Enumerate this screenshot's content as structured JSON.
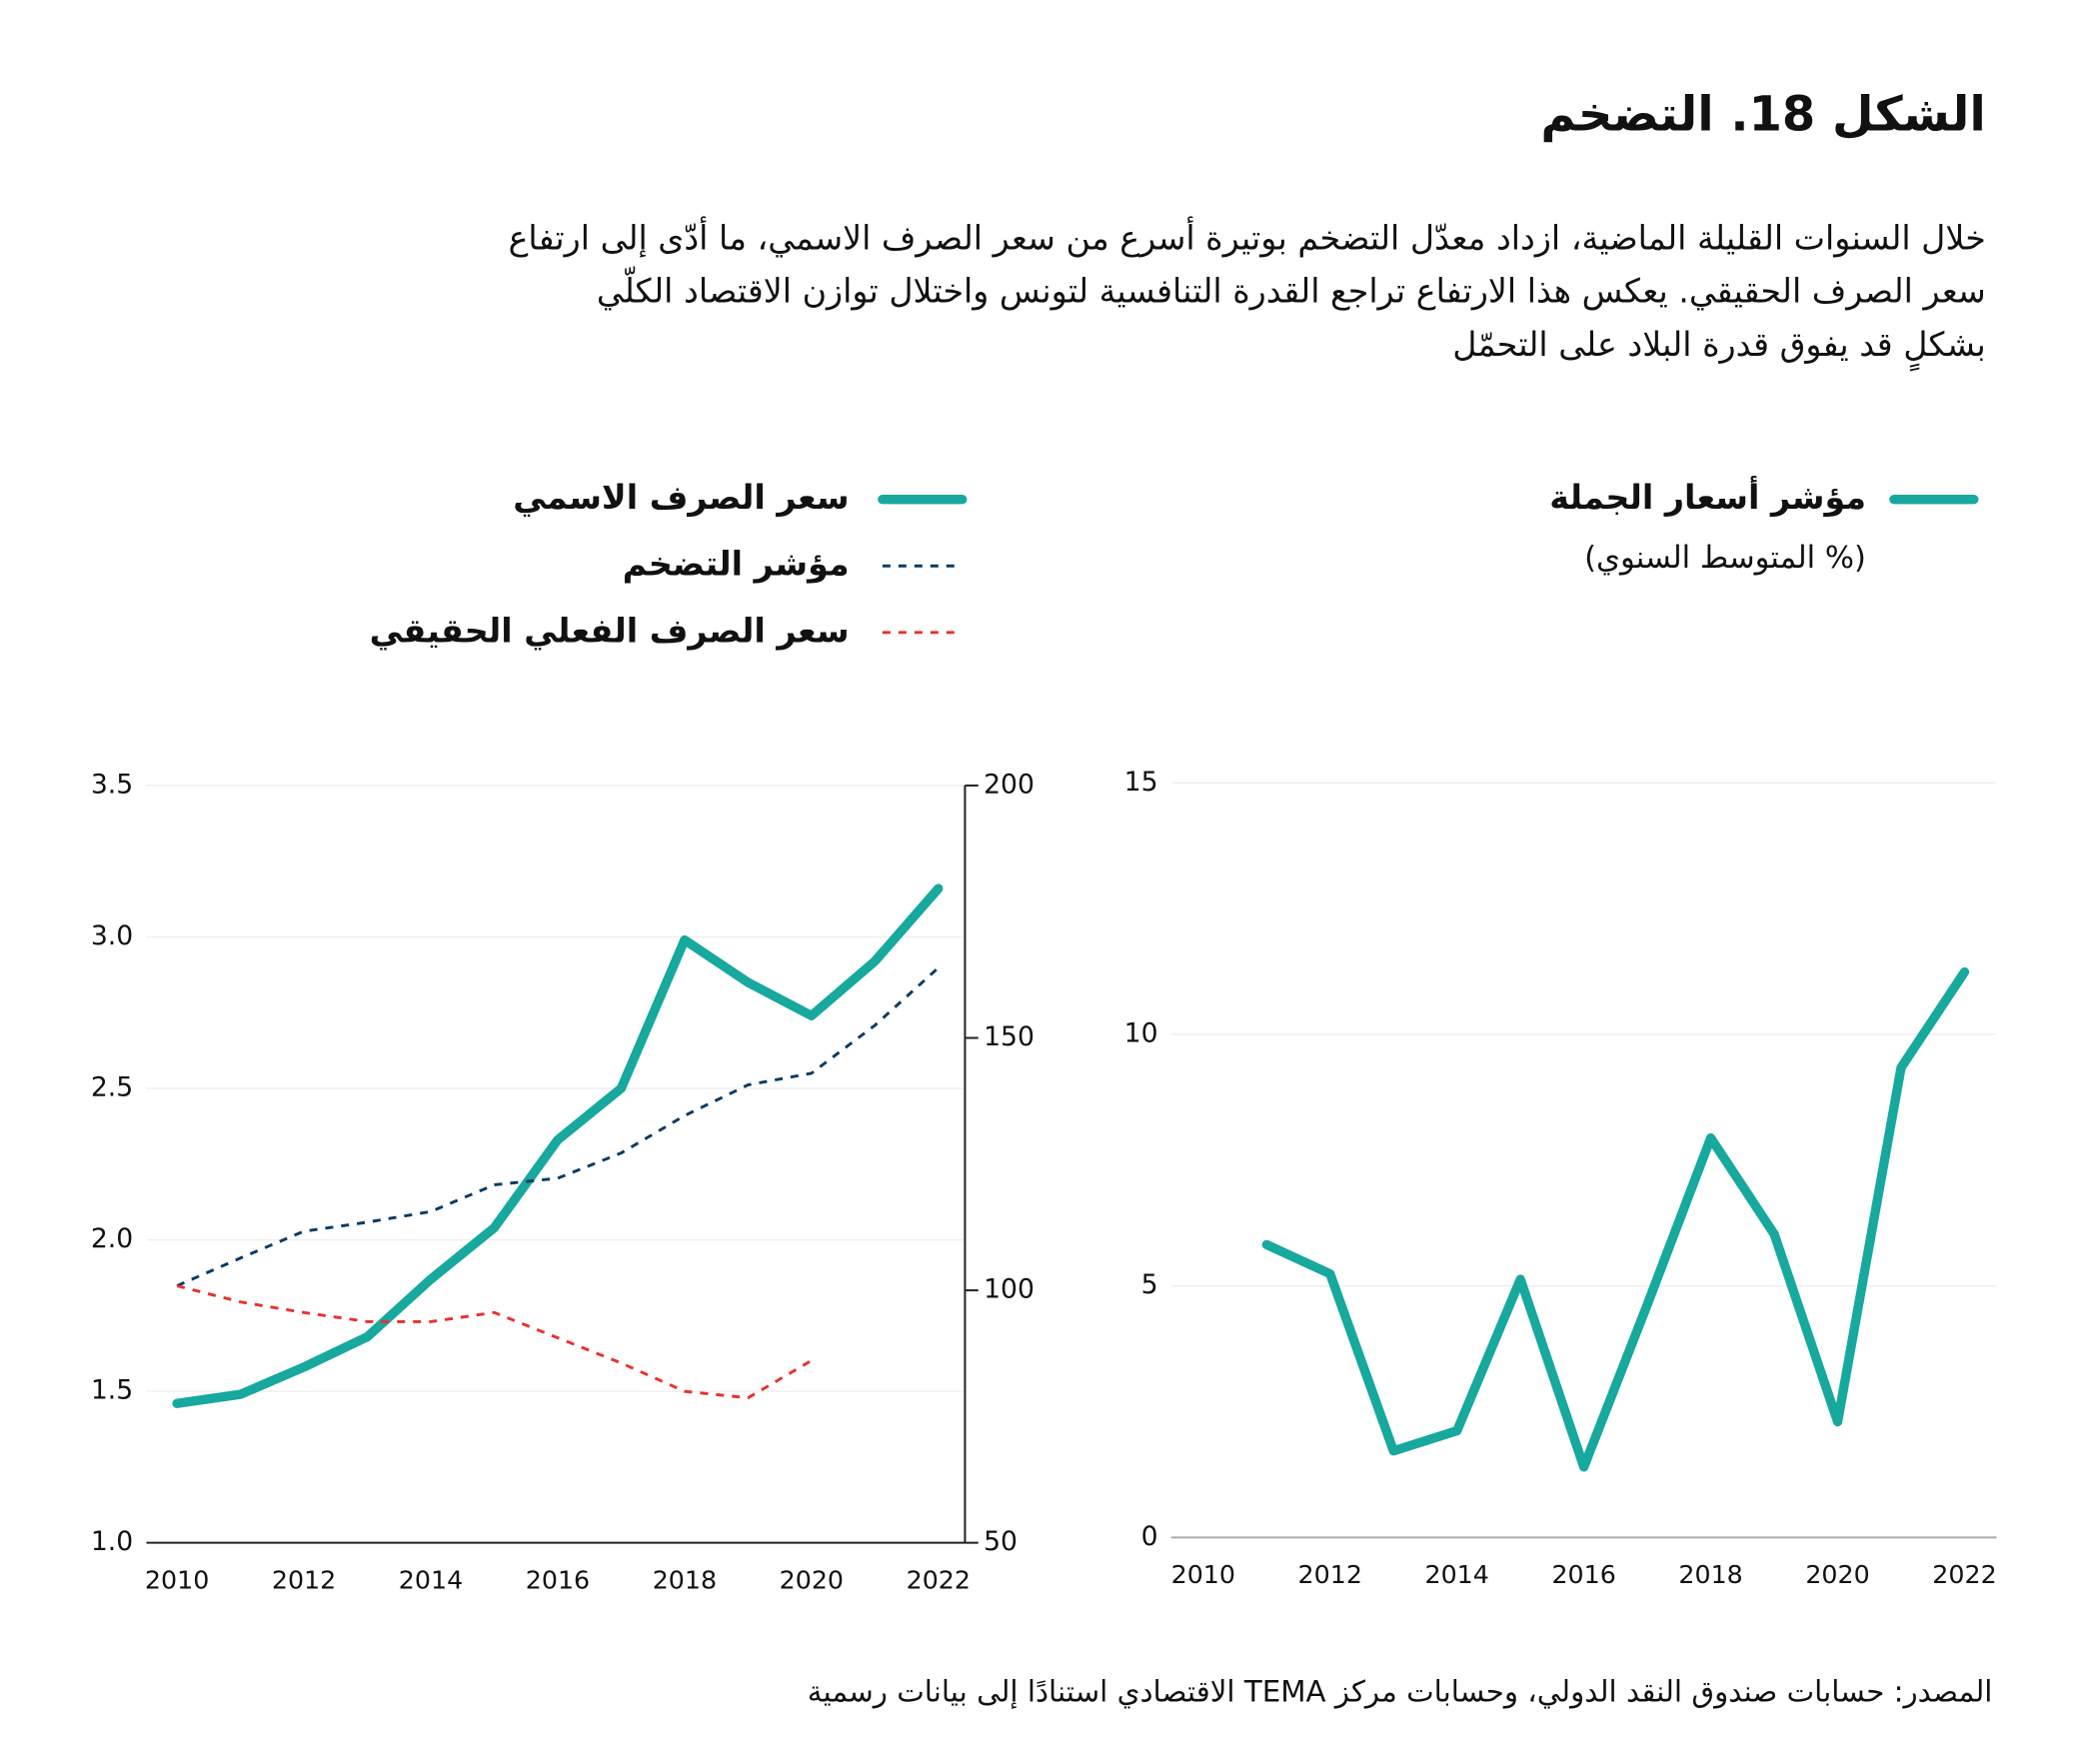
{
  "header": {
    "title": "الشكل 18. التضخم",
    "description": [
      "خلال السنوات القليلة الماضية، ازداد معدّل التضخم بوتيرة أسرع من سعر الصرف الاسمي، ما أدّى إلى ارتفاع",
      "سعر الصرف الحقيقي. يعكس هذا الارتفاع تراجع القدرة التنافسية لتونس واختلال توازن الاقتصاد الكلّي",
      "بشكلٍ قد يفوق قدرة البلاد على التحمّل"
    ]
  },
  "chart_data": [
    {
      "type": "line",
      "x": [
        2010,
        2011,
        2012,
        2013,
        2014,
        2015,
        2016,
        2017,
        2018,
        2019,
        2020,
        2021,
        2022
      ],
      "xlim": [
        2009.5,
        2022.5
      ],
      "xticks": [
        2010,
        2012,
        2014,
        2016,
        2018,
        2020,
        2022
      ],
      "ylim": [
        1,
        3.5
      ],
      "yticks": [
        {
          "value": 1,
          "label": "1.0"
        },
        1.5,
        {
          "value": 2,
          "label": "2.0"
        },
        2.5,
        {
          "value": 3,
          "label": "3.0"
        },
        3.5
      ],
      "y2lim": [
        50,
        200
      ],
      "y2ticks": [
        50,
        100,
        150,
        200
      ],
      "grid": true,
      "series": [
        {
          "name": "سعر الصرف الاسمي",
          "color": "#17a89e",
          "dashed": false,
          "values": [
            1.46,
            1.49,
            1.58,
            1.68,
            1.87,
            2.04,
            2.33,
            2.5,
            2.99,
            2.85,
            2.74,
            2.92,
            3.16
          ]
        },
        {
          "name": "مؤشر التضخم",
          "color": "#0b3b63",
          "dashed": true,
          "axis": "y2",
          "values": [
            100.9,
            106.4,
            111.7,
            113.5,
            115.6,
            120.9,
            122.2,
            127.2,
            134.6,
            140.7,
            143,
            152.5,
            163.9
          ]
        },
        {
          "name": "سعر الصرف الفعلي الحقيقي",
          "color": "#e8322b",
          "dashed": true,
          "axis": "y2",
          "values": [
            100.9,
            97.7,
            95.6,
            93.8,
            93.8,
            95.6,
            90.6,
            85.6,
            80,
            78.7,
            86.1,
            null,
            null
          ]
        }
      ]
    },
    {
      "type": "line",
      "subtitle": "(% المتوسط السنوي)",
      "x": [
        2010,
        2011,
        2012,
        2013,
        2014,
        2015,
        2016,
        2017,
        2018,
        2019,
        2020,
        2021,
        2022
      ],
      "xlim": [
        2009.5,
        2022.5
      ],
      "xticks": [
        2010,
        2012,
        2014,
        2016,
        2018,
        2020,
        2022
      ],
      "ylim": [
        0,
        15
      ],
      "yticks": [
        0,
        5,
        10,
        15
      ],
      "grid": true,
      "series": [
        {
          "name": "مؤشر أسعار الجملة",
          "color": "#17a89e",
          "dashed": false,
          "values": [
            null,
            5.82,
            5.24,
            1.72,
            2.12,
            5.13,
            1.4,
            4.63,
            7.94,
            6.03,
            2.3,
            9.34,
            11.24
          ]
        }
      ]
    }
  ],
  "footer": {
    "source": "المصدر: حسابات صندوق النقد الدولي، وحسابات مركز TEMA الاقتصادي استنادًا إلى بيانات رسمية"
  }
}
